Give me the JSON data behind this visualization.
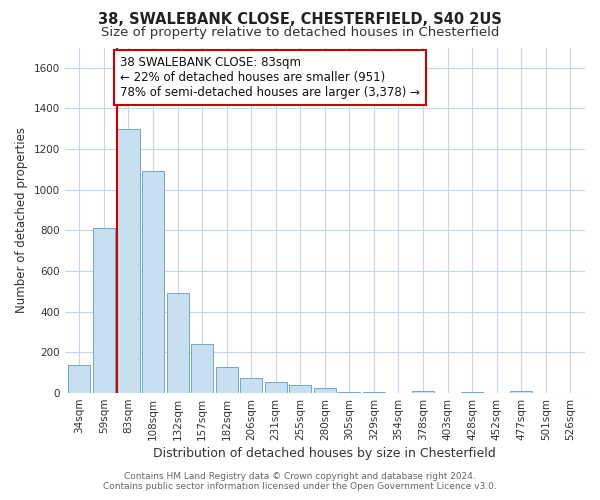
{
  "title_line1": "38, SWALEBANK CLOSE, CHESTERFIELD, S40 2US",
  "title_line2": "Size of property relative to detached houses in Chesterfield",
  "xlabel": "Distribution of detached houses by size in Chesterfield",
  "ylabel": "Number of detached properties",
  "bar_labels": [
    "34sqm",
    "59sqm",
    "83sqm",
    "108sqm",
    "132sqm",
    "157sqm",
    "182sqm",
    "206sqm",
    "231sqm",
    "255sqm",
    "280sqm",
    "305sqm",
    "329sqm",
    "354sqm",
    "378sqm",
    "403sqm",
    "428sqm",
    "452sqm",
    "477sqm",
    "501sqm",
    "526sqm"
  ],
  "bar_values": [
    140,
    810,
    1300,
    1090,
    490,
    240,
    130,
    75,
    55,
    40,
    25,
    5,
    3,
    2,
    8,
    1,
    5,
    1,
    8,
    1,
    1
  ],
  "bar_color": "#c8dff0",
  "bar_edge_color": "#6fa8c8",
  "vline_bar_index": 2,
  "vline_color": "#cc0000",
  "ylim": [
    0,
    1700
  ],
  "yticks": [
    0,
    200,
    400,
    600,
    800,
    1000,
    1200,
    1400,
    1600
  ],
  "annotation_text_line1": "38 SWALEBANK CLOSE: 83sqm",
  "annotation_text_line2": "← 22% of detached houses are smaller (951)",
  "annotation_text_line3": "78% of semi-detached houses are larger (3,378) →",
  "annotation_box_color": "#cc0000",
  "footer_line1": "Contains HM Land Registry data © Crown copyright and database right 2024.",
  "footer_line2": "Contains public sector information licensed under the Open Government Licence v3.0.",
  "background_color": "#ffffff",
  "grid_color": "#c8d4e8",
  "title_fontsize": 10.5,
  "subtitle_fontsize": 9.5,
  "xlabel_fontsize": 9,
  "ylabel_fontsize": 8.5,
  "tick_fontsize": 7.5,
  "annotation_fontsize": 8.5,
  "footer_fontsize": 6.5
}
